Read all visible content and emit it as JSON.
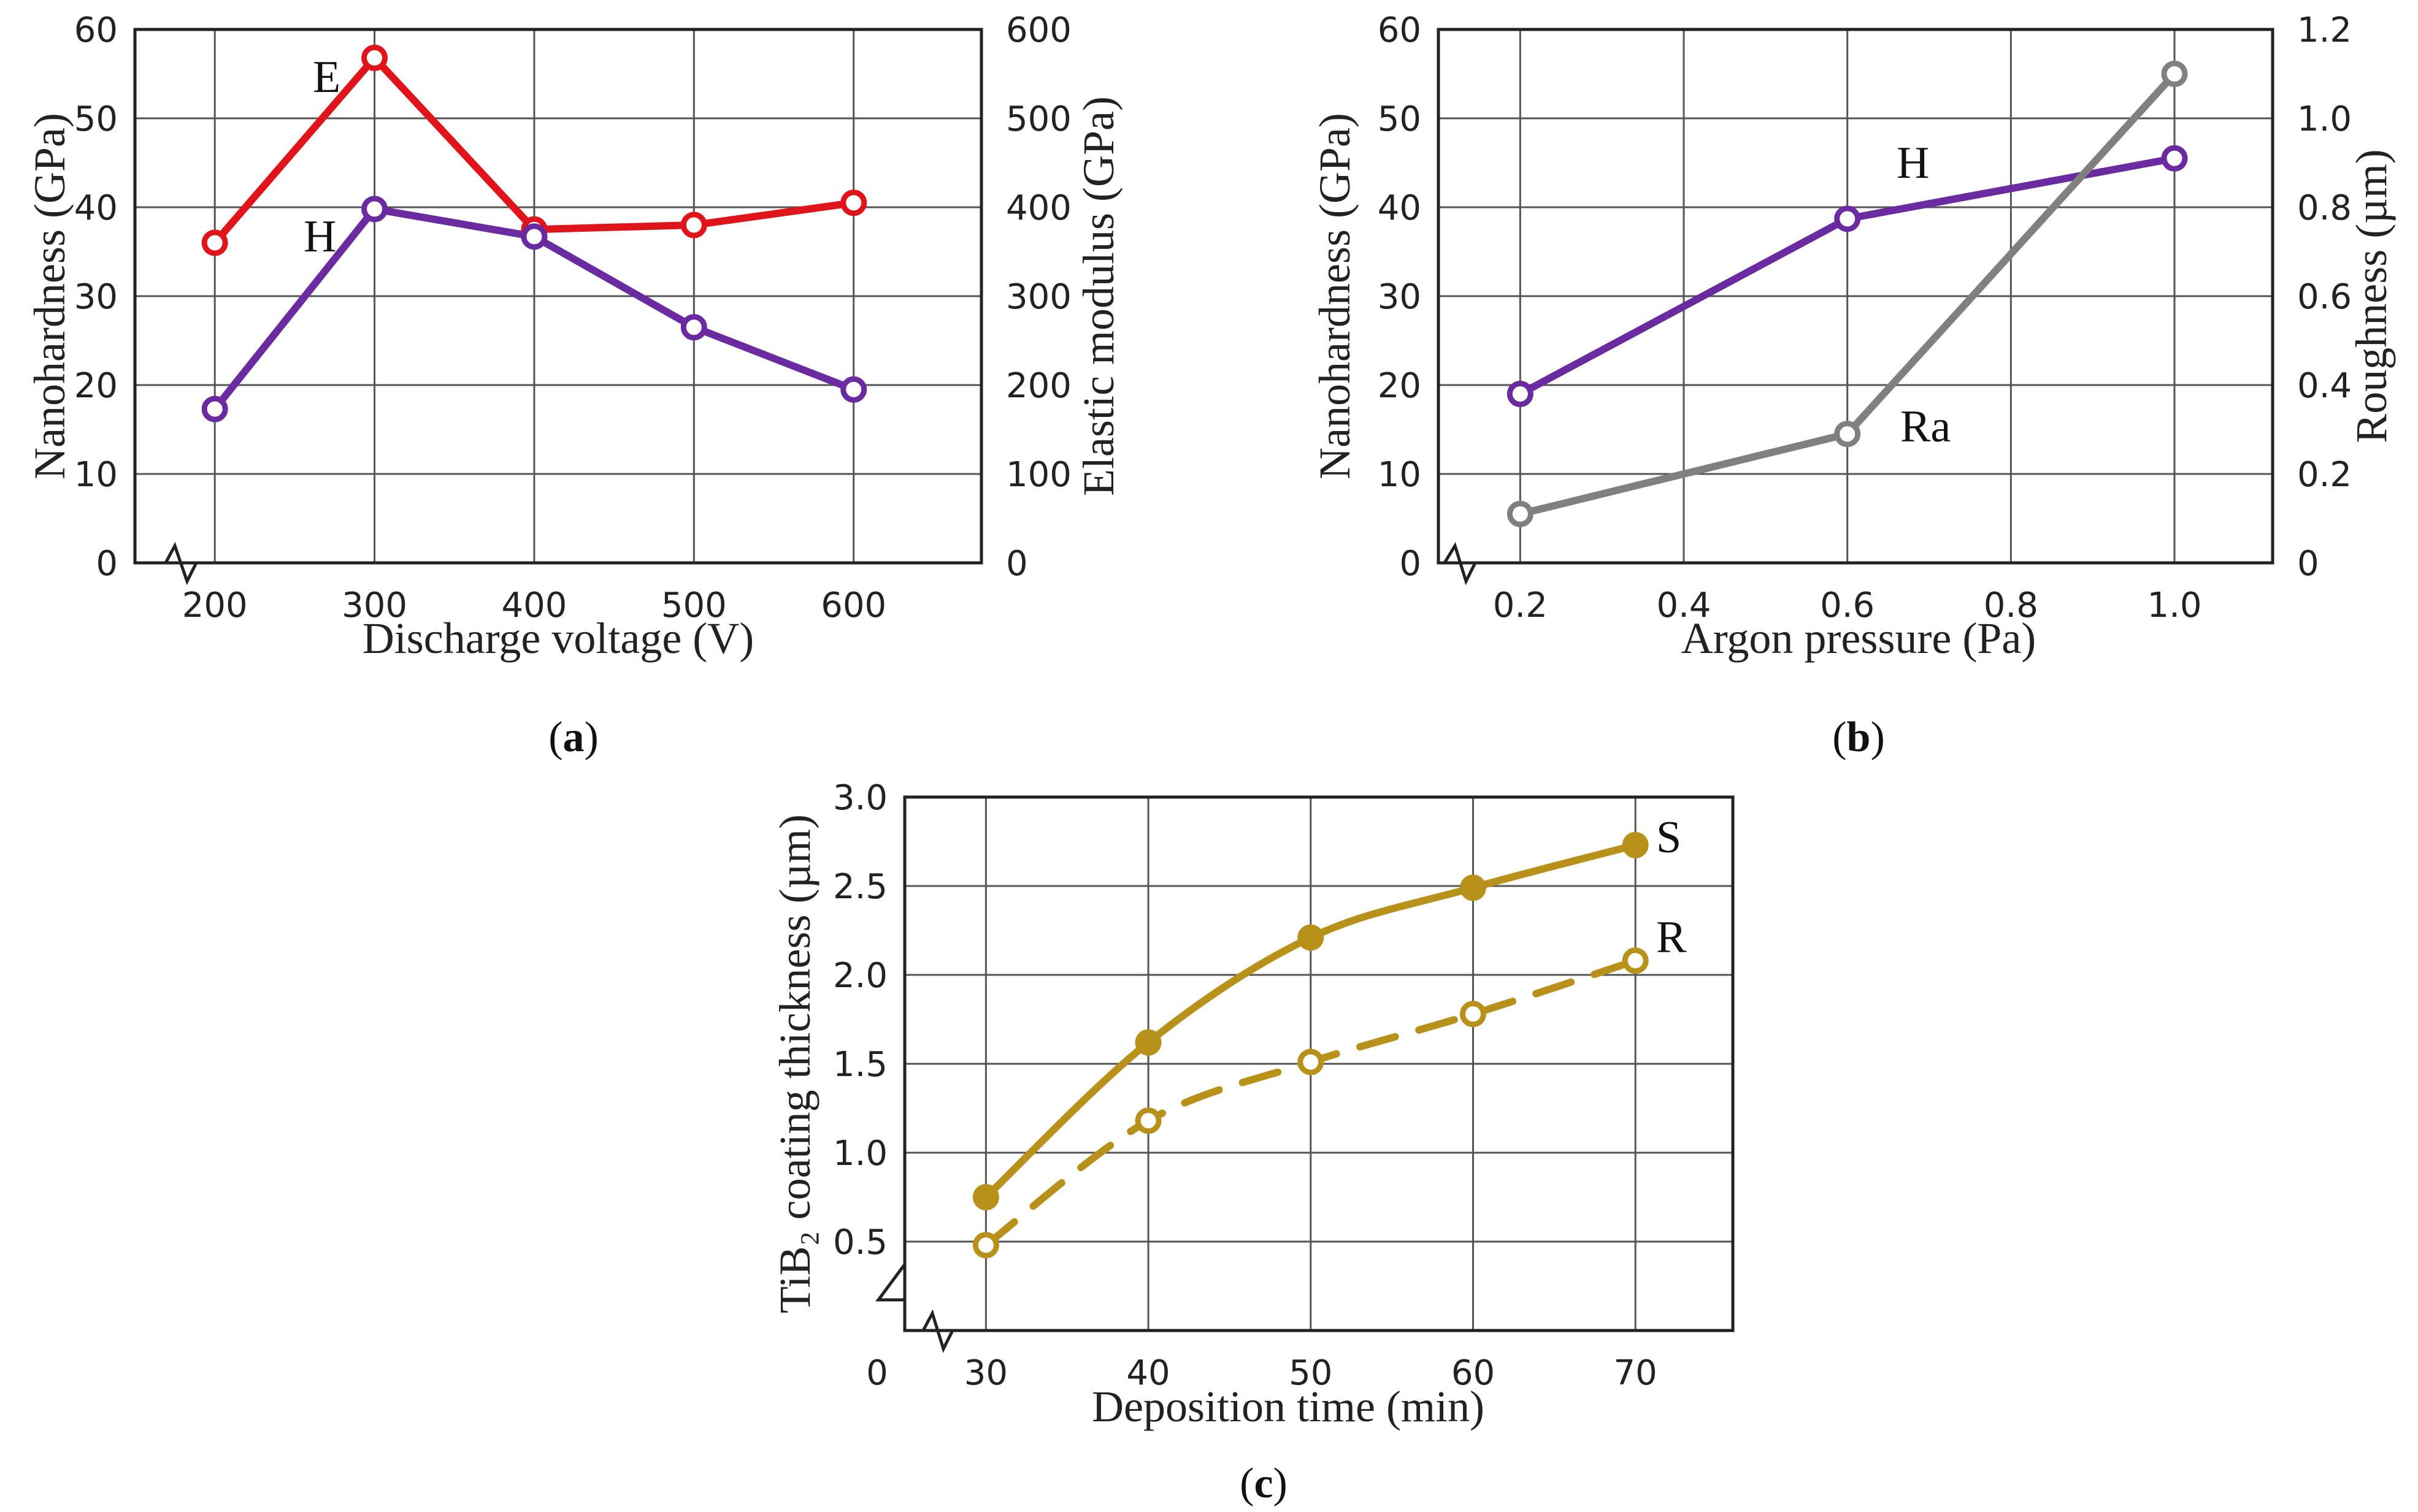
{
  "chart_data": [
    {
      "id": "a",
      "type": "line",
      "panel_label": "a",
      "xlabel": "Discharge voltage (V)",
      "ylabel": "Nanohardness (GPa)",
      "ylabel_right": "Elastic modulus (GPa)",
      "x_ticks": [
        "200",
        "300",
        "400",
        "500",
        "600"
      ],
      "y_ticks": [
        "0",
        "10",
        "20",
        "30",
        "40",
        "50",
        "60"
      ],
      "y_right_ticks": [
        "0",
        "100",
        "200",
        "300",
        "400",
        "500",
        "600"
      ],
      "xlim": [
        150,
        680
      ],
      "ylim": [
        0,
        60
      ],
      "ylim_right": [
        0,
        600
      ],
      "series": [
        {
          "name": "E",
          "axis": "right",
          "color": "#e0141b",
          "marker": "open",
          "x": [
            200,
            300,
            400,
            500,
            600
          ],
          "values": [
            360,
            568,
            375,
            380,
            405
          ]
        },
        {
          "name": "H",
          "axis": "left",
          "color": "#6a2aa0",
          "marker": "open",
          "x": [
            200,
            300,
            400,
            500,
            600
          ],
          "values": [
            17.3,
            39.8,
            36.7,
            26.5,
            19.5
          ]
        }
      ]
    },
    {
      "id": "b",
      "type": "line",
      "panel_label": "b",
      "xlabel": "Argon pressure (Pa)",
      "ylabel": "Nanohardness (GPa)",
      "ylabel_right": "Roughness (µm)",
      "x_ticks": [
        "0.2",
        "0.4",
        "0.6",
        "0.8",
        "1.0"
      ],
      "y_ticks": [
        "0",
        "10",
        "20",
        "30",
        "40",
        "50",
        "60"
      ],
      "y_right_ticks": [
        "0",
        "0.2",
        "0.4",
        "0.6",
        "0.8",
        "1.0",
        "1.2"
      ],
      "xlim": [
        0.1,
        1.12
      ],
      "ylim": [
        0,
        60
      ],
      "ylim_right": [
        0,
        1.2
      ],
      "series": [
        {
          "name": "H",
          "axis": "left",
          "color": "#6a2aa0",
          "marker": "open",
          "x": [
            0.2,
            0.6,
            1.0
          ],
          "values": [
            19,
            38.7,
            45.5
          ]
        },
        {
          "name": "Ra",
          "axis": "right",
          "color": "#808080",
          "marker": "open",
          "x": [
            0.2,
            0.6,
            1.0
          ],
          "values": [
            0.11,
            0.29,
            1.1
          ]
        }
      ]
    },
    {
      "id": "c",
      "type": "line",
      "panel_label": "c",
      "xlabel": "Deposition time (min)",
      "ylabel": "TiB₂ coating thickness (µm)",
      "x_ticks": [
        "30",
        "40",
        "50",
        "60",
        "70"
      ],
      "x_origin_label": "0",
      "y_ticks": [
        "0.5",
        "1.0",
        "1.5",
        "2.0",
        "2.5",
        "3.0"
      ],
      "xlim": [
        25,
        76
      ],
      "ylim": [
        0,
        3.0
      ],
      "series": [
        {
          "name": "S",
          "color": "#b8911a",
          "marker": "filled",
          "style": "solid",
          "x": [
            30,
            40,
            50,
            60,
            70
          ],
          "values": [
            0.75,
            1.62,
            2.21,
            2.49,
            2.73
          ]
        },
        {
          "name": "R",
          "color": "#b8911a",
          "marker": "open",
          "style": "dashed",
          "x": [
            30,
            40,
            50,
            60,
            70
          ],
          "values": [
            0.48,
            1.18,
            1.51,
            1.78,
            2.08
          ]
        }
      ]
    }
  ]
}
